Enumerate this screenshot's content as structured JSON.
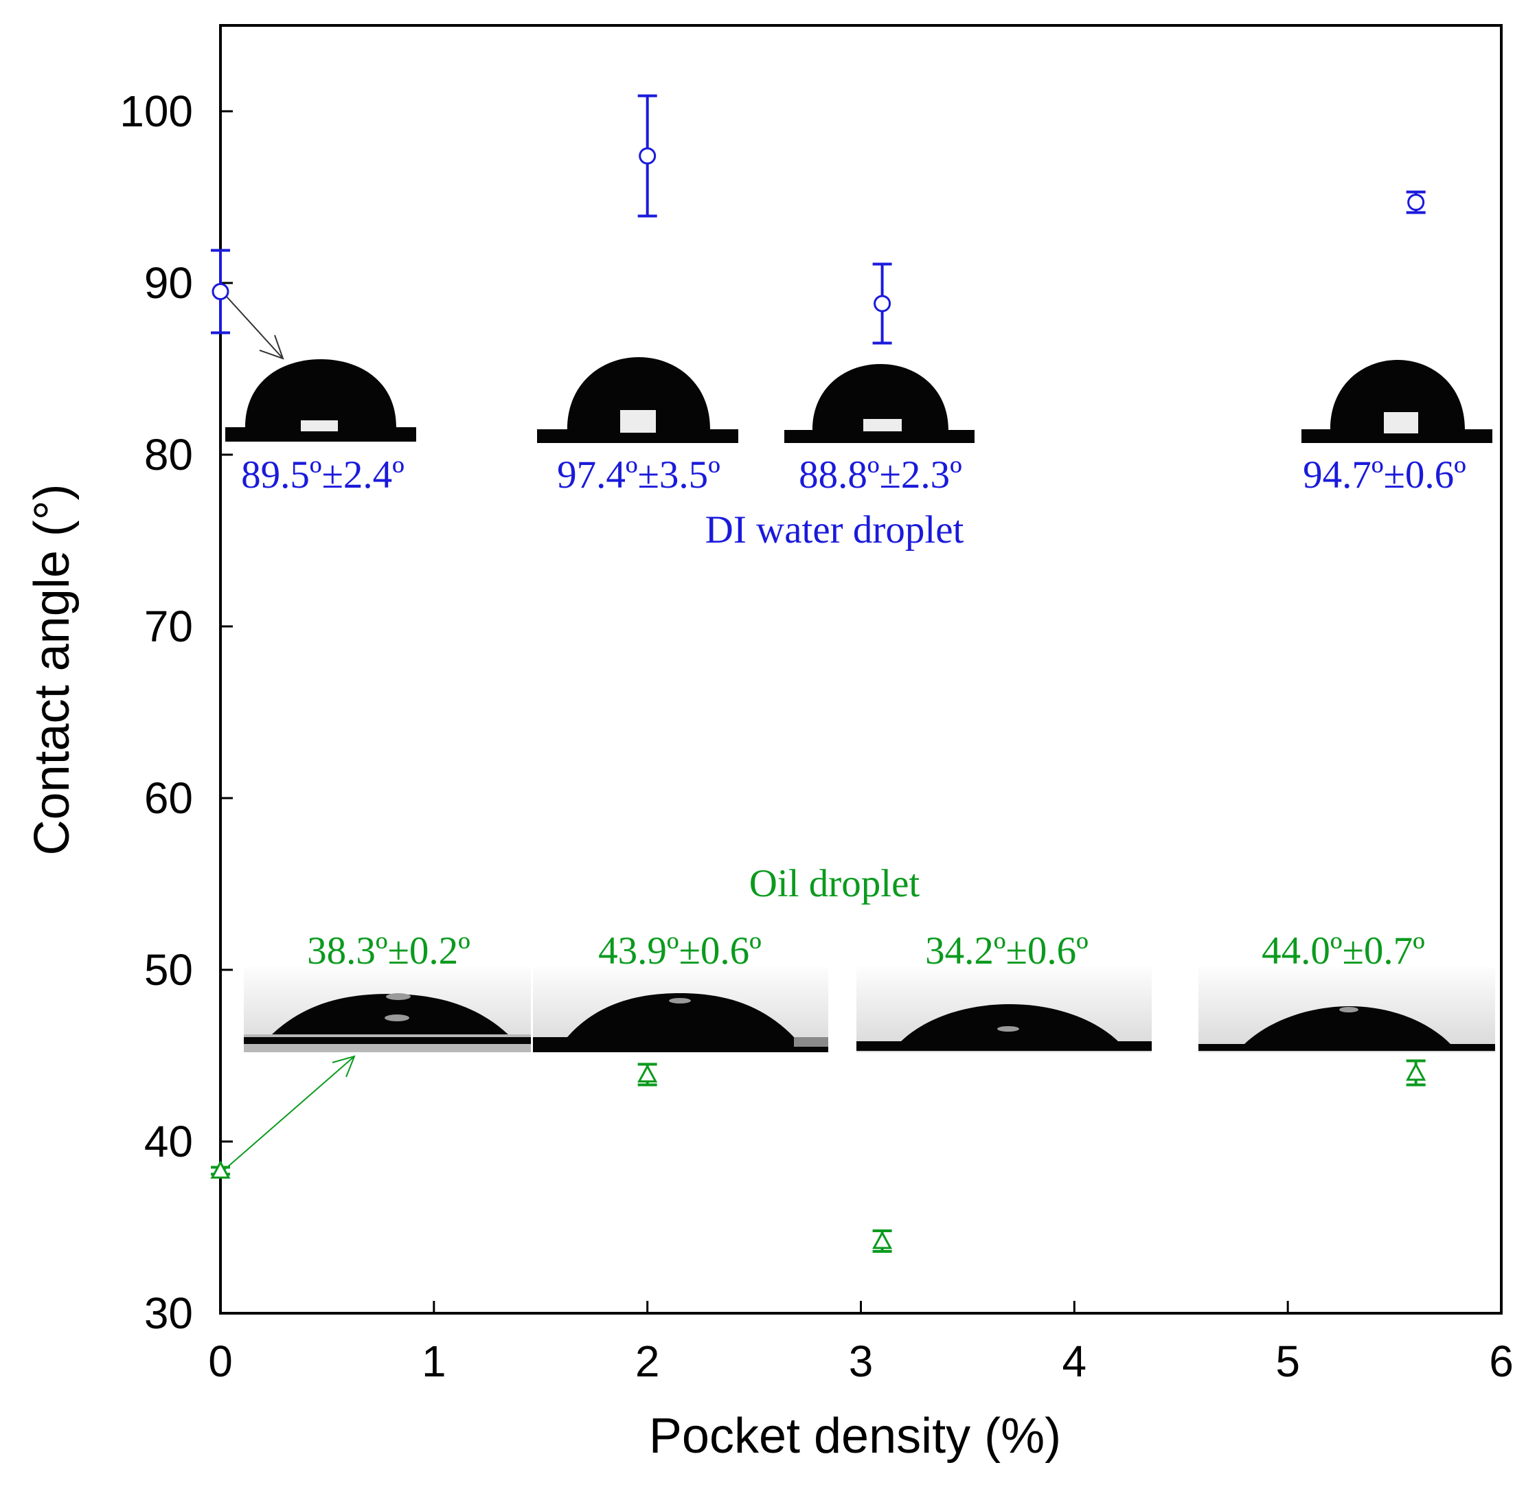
{
  "chart_data": {
    "type": "scatter",
    "xlabel": "Pocket density (%)",
    "ylabel": "Contact angle (°)",
    "xlim": [
      0,
      6
    ],
    "ylim": [
      30,
      105
    ],
    "xticks": [
      0,
      1,
      2,
      3,
      4,
      5,
      6
    ],
    "yticks": [
      30,
      40,
      50,
      60,
      70,
      80,
      90,
      100
    ],
    "grid": false,
    "series": [
      {
        "name": "DI water droplet",
        "marker": "circle",
        "color": "#1a1adb",
        "points": [
          {
            "x": 0,
            "y": 89.5,
            "err": 2.4,
            "label": "89.5º±2.4º"
          },
          {
            "x": 2,
            "y": 97.4,
            "err": 3.5,
            "label": "97.4º±3.5º"
          },
          {
            "x": 3.1,
            "y": 88.8,
            "err": 2.3,
            "label": "88.8º±2.3º"
          },
          {
            "x": 5.6,
            "y": 94.7,
            "err": 0.6,
            "label": "94.7º±0.6º"
          }
        ]
      },
      {
        "name": "Oil droplet",
        "marker": "triangle",
        "color": "#0b9a1e",
        "points": [
          {
            "x": 0,
            "y": 38.3,
            "err": 0.2,
            "label": "38.3º±0.2º"
          },
          {
            "x": 2,
            "y": 43.9,
            "err": 0.6,
            "label": "43.9º±0.6º"
          },
          {
            "x": 3.1,
            "y": 34.2,
            "err": 0.6,
            "label": "34.2º±0.6º"
          },
          {
            "x": 5.6,
            "y": 44.0,
            "err": 0.7,
            "label": "44.0º±0.7º"
          }
        ]
      }
    ]
  },
  "colors": {
    "water": "#1a1adb",
    "oil": "#0b9a1e",
    "droplet": "#050505",
    "axis": "#000000"
  }
}
